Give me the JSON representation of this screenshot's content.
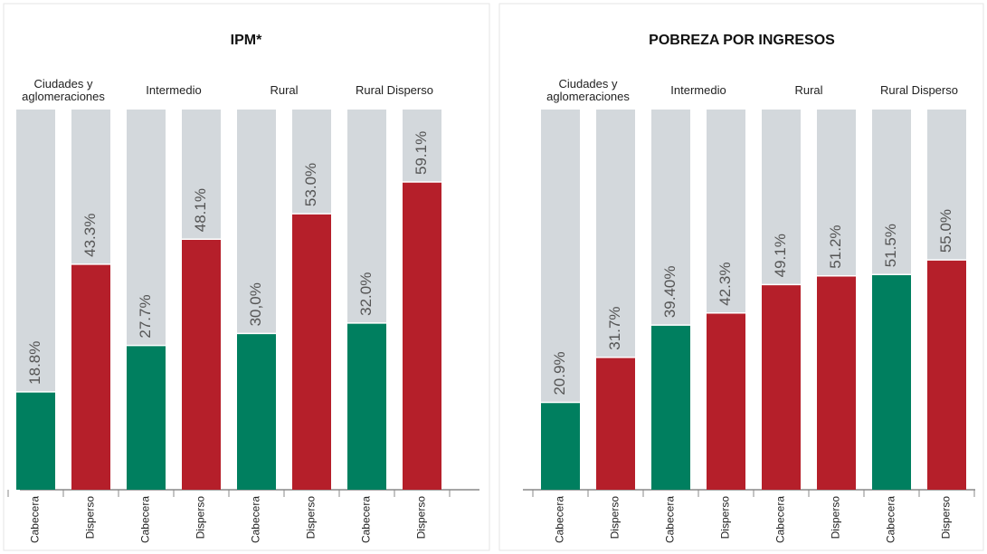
{
  "chart_data": [
    {
      "type": "bar",
      "title": "IPM*",
      "groups": [
        "Ciudades y aglomeraciones",
        "Intermedio",
        "Rural",
        "Rural Disperso"
      ],
      "categories": [
        "Cabecera",
        "Disperso",
        "Cabecera",
        "Disperso",
        "Cabecera",
        "Disperso",
        "Cabecera",
        "Disperso"
      ],
      "values": [
        18.8,
        43.3,
        27.7,
        48.1,
        30.0,
        53.0,
        32.0,
        59.1
      ],
      "value_labels": [
        "18.8%",
        "43.3%",
        "27.7%",
        "48.1%",
        "30,0%",
        "53.0%",
        "32.0%",
        "59.1%"
      ],
      "colors": [
        "#007f5f",
        "#b51f2a",
        "#007f5f",
        "#b51f2a",
        "#007f5f",
        "#b51f2a",
        "#007f5f",
        "#b51f2a"
      ],
      "ylim": [
        0,
        73
      ]
    },
    {
      "type": "bar",
      "title": "POBREZA POR INGRESOS",
      "groups": [
        "Ciudades y aglomeraciones",
        "Intermedio",
        "Rural",
        "Rural Disperso"
      ],
      "categories": [
        "Cabecera",
        "Disperso",
        "Cabecera",
        "Disperso",
        "Cabecera",
        "Disperso",
        "Cabecera",
        "Disperso"
      ],
      "values": [
        20.9,
        31.7,
        39.4,
        42.3,
        49.1,
        51.2,
        51.5,
        55.0
      ],
      "value_labels": [
        "20.9%",
        "31.7%",
        "39.40%",
        "42.3%",
        "49.1%",
        "51.2%",
        "51.5%",
        "55.0%"
      ],
      "colors": [
        "#007f5f",
        "#b51f2a",
        "#007f5f",
        "#b51f2a",
        "#b51f2a",
        "#b51f2a",
        "#007f5f",
        "#b51f2a"
      ],
      "ylim": [
        0,
        91
      ]
    }
  ]
}
